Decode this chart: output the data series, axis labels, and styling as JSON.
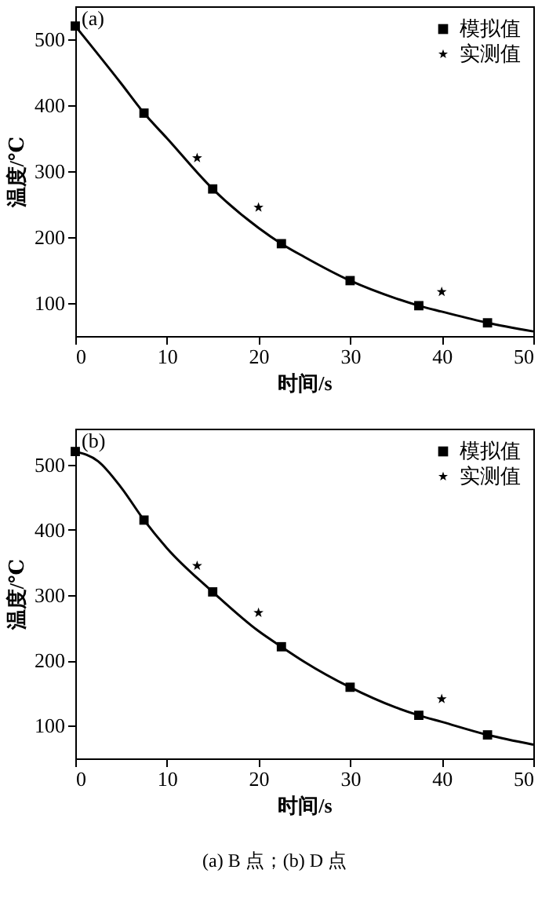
{
  "chart_data": [
    {
      "type": "line",
      "xlabel": "时间/s",
      "ylabel": "温度/℃",
      "annotations": [
        "(a)"
      ],
      "xlim": [
        0,
        50
      ],
      "ylim": [
        50,
        550
      ],
      "xticks": [
        0,
        10,
        20,
        30,
        40,
        50
      ],
      "yticks": [
        100,
        200,
        300,
        400,
        500
      ],
      "grid": false,
      "legend": "top right",
      "series": [
        {
          "type": "line",
          "marker": "none",
          "color": "#000000",
          "x": [
            0,
            5,
            7.5,
            10,
            15,
            20,
            22.5,
            25,
            30,
            35,
            37.5,
            40,
            45,
            50
          ],
          "values": [
            520,
            433,
            388,
            350,
            273,
            214,
            190,
            170,
            134,
            107,
            96,
            87,
            70,
            57
          ]
        },
        {
          "name": "模拟值",
          "type": "scatter",
          "marker": "square",
          "color": "#000000",
          "x": [
            0,
            7.5,
            15,
            22.5,
            30,
            37.5,
            45
          ],
          "values": [
            520,
            388,
            273,
            190,
            134,
            96,
            70
          ]
        },
        {
          "name": "实测值",
          "type": "scatter",
          "marker": "star",
          "color": "#000000",
          "x": [
            13.3,
            20,
            40
          ],
          "values": [
            320,
            245,
            117
          ]
        }
      ]
    },
    {
      "type": "line",
      "xlabel": "时间/s",
      "ylabel": "温度/℃",
      "annotations": [
        "(b)",
        "(a) B 点；(b) D 点"
      ],
      "xlim": [
        0,
        50
      ],
      "ylim": [
        50,
        555
      ],
      "xticks": [
        0,
        10,
        20,
        30,
        40,
        50
      ],
      "yticks": [
        100,
        200,
        300,
        400,
        500
      ],
      "grid": false,
      "legend": "top right",
      "series": [
        {
          "type": "line",
          "marker": "none",
          "color": "#000000",
          "x": [
            0,
            2.5,
            5,
            7.5,
            10,
            15,
            20,
            22.5,
            25,
            30,
            35,
            37.5,
            40,
            45,
            50
          ],
          "values": [
            520,
            505,
            465,
            415,
            372,
            305,
            245,
            221,
            198,
            159,
            128,
            116,
            106,
            86,
            71
          ]
        },
        {
          "name": "模拟值",
          "type": "scatter",
          "marker": "square",
          "color": "#000000",
          "x": [
            0,
            7.5,
            15,
            22.5,
            30,
            37.5,
            45
          ],
          "values": [
            520,
            415,
            305,
            221,
            159,
            116,
            86
          ]
        },
        {
          "name": "实测值",
          "type": "scatter",
          "marker": "star",
          "color": "#000000",
          "x": [
            13.3,
            20,
            40
          ],
          "values": [
            345,
            273,
            141
          ]
        }
      ]
    }
  ]
}
